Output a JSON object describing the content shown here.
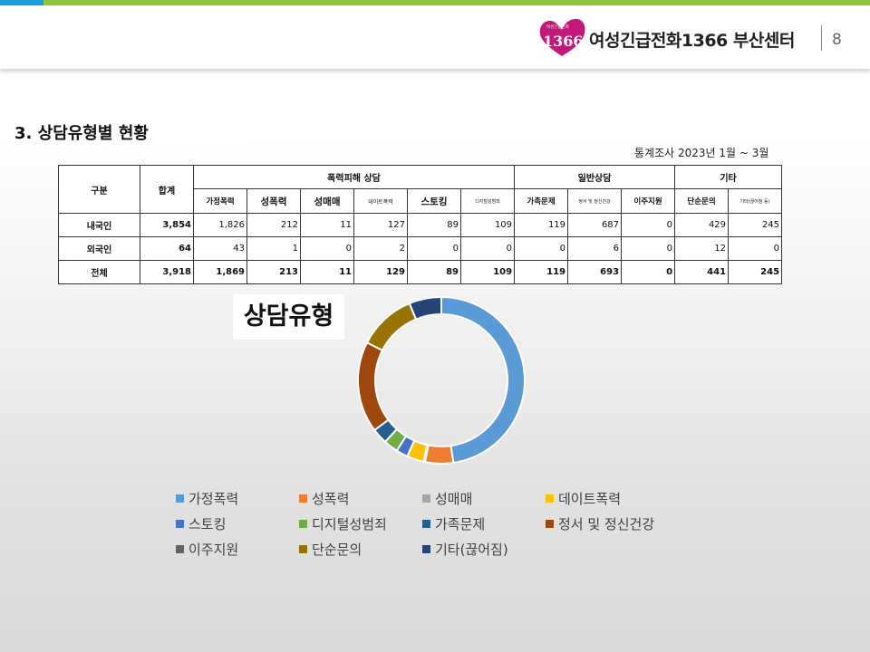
{
  "header": {
    "organization": "여성긴급전화1366 부산센터",
    "page_number": "8",
    "logo_text": "1366",
    "logo_small_text": "여성긴급전화"
  },
  "section": {
    "title": "3. 상담유형별 현황",
    "period": "통계조사 2023년 1월 ~ 3월"
  },
  "table": {
    "col_division": "구분",
    "col_total": "합계",
    "groups": [
      "폭력피해 상담",
      "일반상담",
      "기타"
    ],
    "subheaders": [
      "가정폭력",
      "성폭력",
      "성매매",
      "데이트폭력",
      "스토킹",
      "디지털성범죄",
      "가족문제",
      "정서 및 정신건강",
      "이주지원",
      "단순문의",
      "기타(끊어짐 등)"
    ],
    "rows": [
      {
        "label": "내국인",
        "total": "3,854",
        "values": [
          "1,826",
          "212",
          "11",
          "127",
          "89",
          "109",
          "119",
          "687",
          "0",
          "429",
          "245"
        ]
      },
      {
        "label": "외국인",
        "total": "64",
        "values": [
          "43",
          "1",
          "0",
          "2",
          "0",
          "0",
          "0",
          "6",
          "0",
          "12",
          "0"
        ]
      },
      {
        "label": "전체",
        "total": "3,918",
        "values": [
          "1,869",
          "213",
          "11",
          "129",
          "89",
          "109",
          "119",
          "693",
          "0",
          "441",
          "245"
        ]
      }
    ]
  },
  "chart_data": {
    "type": "pie",
    "title": "상담유형",
    "categories": [
      "가정폭력",
      "성폭력",
      "성매매",
      "데이트폭력",
      "스토킹",
      "디지털성범죄",
      "가족문제",
      "정서 및 정신건강",
      "이주지원",
      "단순문의",
      "기타(끊어짐)"
    ],
    "values": [
      1869,
      213,
      11,
      129,
      89,
      109,
      119,
      693,
      0,
      441,
      245
    ],
    "colors": [
      "#5b9bd5",
      "#ed7d31",
      "#a5a5a5",
      "#ffc000",
      "#4472c4",
      "#70ad47",
      "#255e91",
      "#9e480e",
      "#636363",
      "#997300",
      "#264478"
    ],
    "donut": true,
    "legend_position": "bottom"
  }
}
